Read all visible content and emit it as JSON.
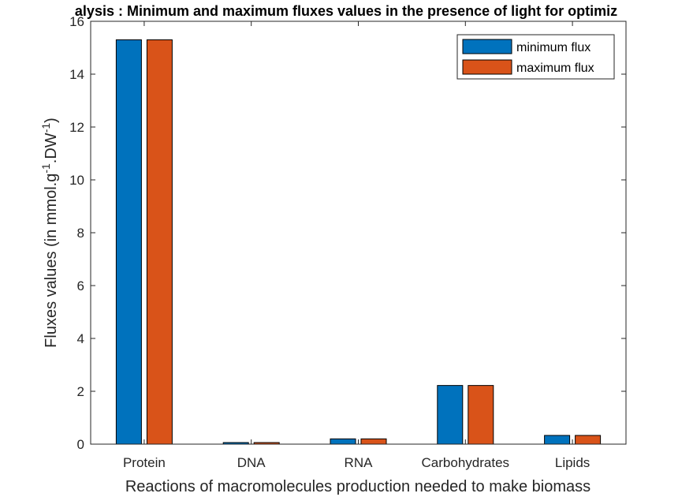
{
  "chart_data": {
    "type": "bar",
    "title": "alysis : Minimum and maximum fluxes values in the presence of light for optimiz",
    "xlabel": "Reactions of macromolecules production needed to make biomass",
    "ylabel_main": "Fluxes values (in mmol.g",
    "ylabel_sup1": "-1",
    "ylabel_mid": ".DW",
    "ylabel_sup2": "-1",
    "ylabel_end": ")",
    "categories": [
      "Protein",
      "DNA",
      "RNA",
      "Carbohydrates",
      "Lipids"
    ],
    "series": [
      {
        "name": "minimum flux",
        "color": "#0072BD",
        "values": [
          15.3,
          0.06,
          0.2,
          2.22,
          0.33
        ]
      },
      {
        "name": "maximum flux",
        "color": "#D95319",
        "values": [
          15.3,
          0.06,
          0.2,
          2.22,
          0.33
        ]
      }
    ],
    "ylim": [
      0,
      16
    ],
    "yticks": [
      0,
      2,
      4,
      6,
      8,
      10,
      12,
      14,
      16
    ],
    "ytick_labels": [
      "0",
      "2",
      "4",
      "6",
      "8",
      "10",
      "12",
      "14",
      "16"
    ],
    "grid": false,
    "legend_position": "top-right"
  }
}
